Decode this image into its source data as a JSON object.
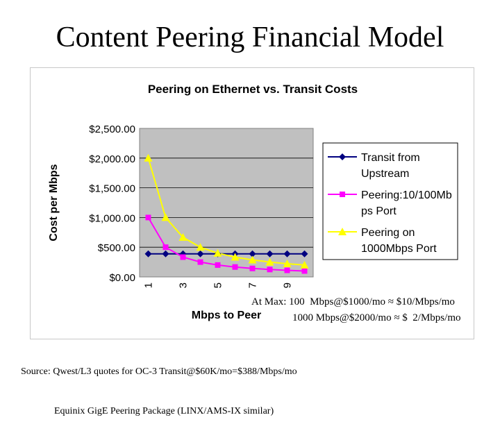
{
  "slide": {
    "title": "Content Peering Financial Model"
  },
  "notes": {
    "line1": "At Max: 100  Mbps@$1000/mo ≈ $10/Mbps/mo",
    "line2": "1000 Mbps@$2000/mo ≈ $  2/Mbps/mo"
  },
  "source": {
    "line1": "Source: Qwest/L3 quotes for OC-3 Transit@$60K/mo=$388/Mbps/mo",
    "line2": "Equinix GigE Peering Package (LINX/AMS-IX similar)"
  },
  "colors": {
    "plot_background": "#c0c0c0",
    "transit": "#000080",
    "peering_100": "#ff00ff",
    "peering_1000": "#ffff00"
  },
  "chart_data": {
    "type": "line",
    "title": "Peering on Ethernet vs. Transit Costs",
    "xlabel": "Mbps to Peer",
    "ylabel": "Cost per Mbps",
    "x": [
      1,
      2,
      3,
      4,
      5,
      6,
      7,
      8,
      9,
      10
    ],
    "x_tick_labels": [
      "1",
      "3",
      "5",
      "7",
      "9"
    ],
    "y_tick_labels": [
      "$0.00",
      "$500.00",
      "$1,000.00",
      "$1,500.00",
      "$2,000.00",
      "$2,500.00"
    ],
    "ylim": [
      0,
      2500
    ],
    "grid": true,
    "legend_position": "right",
    "series": [
      {
        "name": "Transit from Upstream",
        "legend_lines": [
          "Transit from",
          "Upstream"
        ],
        "marker": "diamond",
        "values": [
          388,
          388,
          388,
          388,
          388,
          388,
          388,
          388,
          388,
          388
        ]
      },
      {
        "name": "Peering:10/100Mbps Port",
        "legend_lines": [
          "Peering:10/100Mb",
          "ps Port"
        ],
        "marker": "square",
        "values": [
          1000,
          500,
          333,
          250,
          200,
          167,
          143,
          125,
          111,
          100
        ]
      },
      {
        "name": "Peering on 1000Mbps Port",
        "legend_lines": [
          "Peering on",
          "1000Mbps Port"
        ],
        "marker": "triangle",
        "values": [
          2000,
          1000,
          667,
          500,
          400,
          333,
          286,
          250,
          222,
          200
        ]
      }
    ]
  }
}
